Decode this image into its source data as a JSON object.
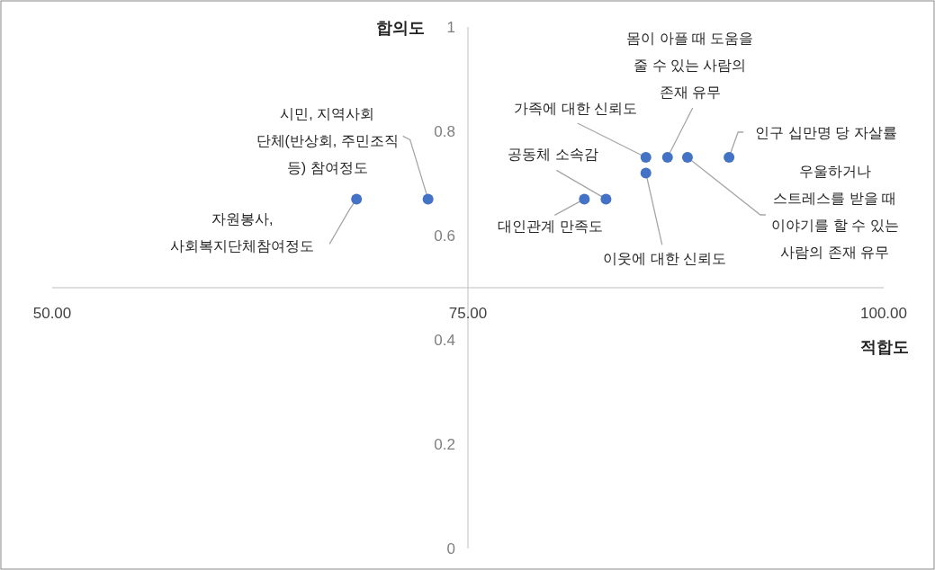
{
  "chart_data": {
    "type": "scatter",
    "xlabel": "적합도",
    "ylabel": "합의도",
    "x": [
      68.3,
      72.6,
      82.0,
      83.3,
      85.7,
      85.7,
      87.0,
      88.2,
      90.7
    ],
    "values": [
      0.67,
      0.67,
      0.67,
      0.67,
      0.72,
      0.75,
      0.75,
      0.75,
      0.75
    ],
    "color": "#4472c4",
    "marker": "circle",
    "xlim": [
      50,
      100
    ],
    "ylim": [
      0,
      1
    ],
    "xticks": [
      {
        "value": 50,
        "label": "50.00"
      },
      {
        "value": 75,
        "label": "75.00"
      },
      {
        "value": 100,
        "label": "100.00"
      }
    ],
    "yticks": [
      0,
      0.2,
      0.4,
      0.6,
      0.8,
      1
    ],
    "grid": false,
    "annotations": [
      {
        "text": "자원봉사,\n사회복지단체참여정도",
        "x": 68.3,
        "y": 0.67
      },
      {
        "text": "시민, 지역사회\n단체(반상회, 주민조직\n등) 참여정도",
        "x": 72.6,
        "y": 0.67
      },
      {
        "text": "대인관계 만족도",
        "x": 82.0,
        "y": 0.67
      },
      {
        "text": "공동체 소속감",
        "x": 83.3,
        "y": 0.67
      },
      {
        "text": "이웃에 대한 신뢰도",
        "x": 85.7,
        "y": 0.72
      },
      {
        "text": "가족에 대한 신뢰도",
        "x": 85.7,
        "y": 0.75
      },
      {
        "text": "몸이 아플 때 도움을\n줄 수 있는 사람의\n존재 유무",
        "x": 87.0,
        "y": 0.75
      },
      {
        "text": "우울하거나\n스트레스를 받을 때\n이야기를 할 수 있는\n사람의 존재 유무",
        "x": 88.2,
        "y": 0.75
      },
      {
        "text": "인구 십만명 당 자살률",
        "x": 90.7,
        "y": 0.75
      }
    ]
  }
}
